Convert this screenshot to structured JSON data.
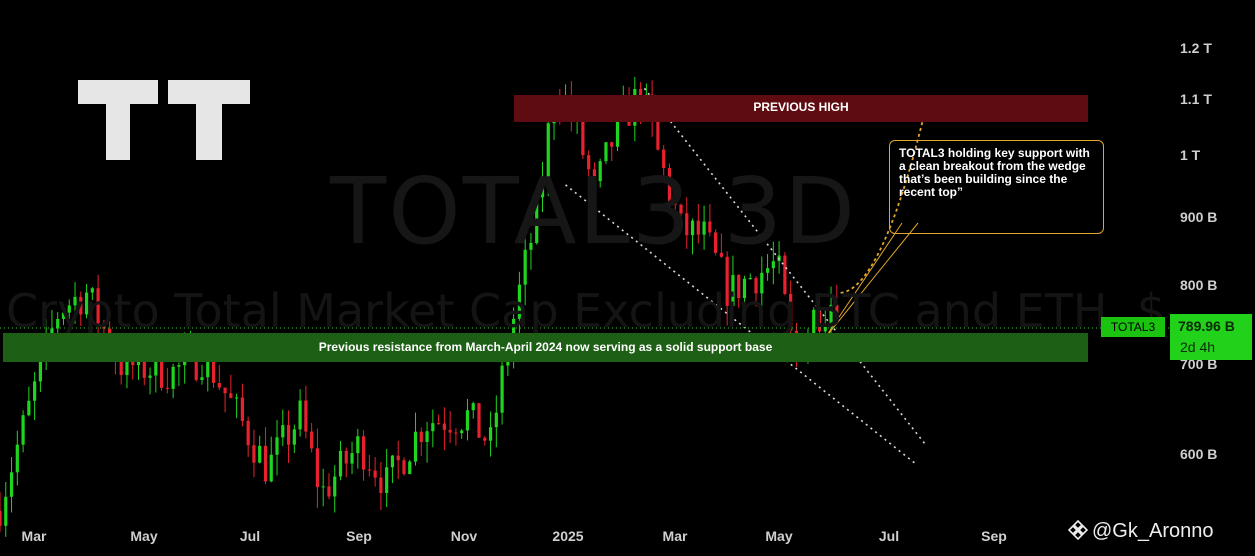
{
  "watermark": {
    "symbol_interval": "TOTAL3 3D",
    "description": "Crypto Total Market Cap Excluding BTC and ETH, $"
  },
  "logo": {
    "name": "tradingview-logo-icon",
    "text": "TT"
  },
  "annotations": {
    "previous_high": "PREVIOUS HIGH",
    "support": "Previous resistance from March-April 2024 now serving as a solid support base",
    "callout": "TOTAL3 holding key support with a clean breakout from the wedge that’s been building since the recent top”"
  },
  "price_scale": {
    "symbol": "TOTAL3",
    "last_price": "789.96 B",
    "countdown": "2d 4h"
  },
  "credit": {
    "icon": "binance-diamond-icon",
    "handle": "@Gk_Aronno"
  },
  "colors": {
    "up": "#1fd51f",
    "down": "#e8212e",
    "background": "#000000",
    "zone_high": "#5e0c11",
    "zone_support": "#1d5f14",
    "callout_border": "#e1a62a"
  },
  "chart_data": {
    "type": "candlestick",
    "y_axis": {
      "scale": "log",
      "ticks": [
        {
          "value": 1200,
          "label": "1.2 T"
        },
        {
          "value": 1100,
          "label": "1.1 T"
        },
        {
          "value": 1000,
          "label": "1 T"
        },
        {
          "value": 900,
          "label": "900 B"
        },
        {
          "value": 800,
          "label": "800 B"
        },
        {
          "value": 700,
          "label": "700 B"
        },
        {
          "value": 600,
          "label": "600 B"
        }
      ],
      "unit": "B"
    },
    "x_axis": {
      "ticks": [
        "Mar",
        "May",
        "Jul",
        "Sep",
        "Nov",
        "2025",
        "Mar",
        "May",
        "Jul",
        "Sep"
      ],
      "range": [
        "2024-02-20",
        "2025-10-15"
      ]
    },
    "zones": [
      {
        "label": "PREVIOUS HIGH",
        "from": 1110,
        "to": 1145
      },
      {
        "label": "support",
        "from": 755,
        "to": 790
      }
    ],
    "last_price": 789.96,
    "waypoints": [
      {
        "date": "2024-02-20",
        "value": 550
      },
      {
        "date": "2024-03-05",
        "value": 640
      },
      {
        "date": "2024-03-22",
        "value": 770
      },
      {
        "date": "2024-04-05",
        "value": 790
      },
      {
        "date": "2024-04-22",
        "value": 700
      },
      {
        "date": "2024-05-20",
        "value": 690
      },
      {
        "date": "2024-06-05",
        "value": 710
      },
      {
        "date": "2024-06-20",
        "value": 650
      },
      {
        "date": "2024-07-08",
        "value": 585
      },
      {
        "date": "2024-07-25",
        "value": 640
      },
      {
        "date": "2024-08-05",
        "value": 560
      },
      {
        "date": "2024-08-25",
        "value": 610
      },
      {
        "date": "2024-09-08",
        "value": 570
      },
      {
        "date": "2024-09-28",
        "value": 635
      },
      {
        "date": "2024-10-20",
        "value": 640
      },
      {
        "date": "2024-11-01",
        "value": 610
      },
      {
        "date": "2024-11-10",
        "value": 720
      },
      {
        "date": "2024-11-25",
        "value": 900
      },
      {
        "date": "2024-12-05",
        "value": 1130
      },
      {
        "date": "2024-12-15",
        "value": 1050
      },
      {
        "date": "2024-12-25",
        "value": 935
      },
      {
        "date": "2025-01-06",
        "value": 1050
      },
      {
        "date": "2025-01-18",
        "value": 1110
      },
      {
        "date": "2025-01-28",
        "value": 990
      },
      {
        "date": "2025-02-08",
        "value": 880
      },
      {
        "date": "2025-02-20",
        "value": 870
      },
      {
        "date": "2025-03-05",
        "value": 790
      },
      {
        "date": "2025-03-15",
        "value": 810
      },
      {
        "date": "2025-03-30",
        "value": 830
      },
      {
        "date": "2025-04-08",
        "value": 700
      },
      {
        "date": "2025-04-18",
        "value": 760
      },
      {
        "date": "2025-05-02",
        "value": 790
      }
    ],
    "trendlines": [
      {
        "from": {
          "date": "2025-01-20",
          "value": 1120
        },
        "to": {
          "date": "2025-06-15",
          "value": 610
        }
      },
      {
        "from": {
          "date": "2024-12-10",
          "value": 950
        },
        "to": {
          "date": "2025-06-10",
          "value": 590
        }
      }
    ],
    "projection": [
      {
        "date": "2025-05-02",
        "value": 790
      },
      {
        "date": "2025-05-20",
        "value": 800
      },
      {
        "date": "2025-06-05",
        "value": 940
      },
      {
        "date": "2025-06-15",
        "value": 1080
      }
    ]
  }
}
